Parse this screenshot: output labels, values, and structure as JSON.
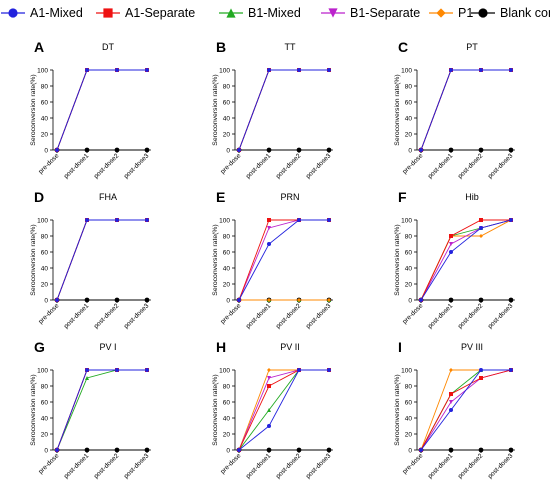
{
  "legend": [
    {
      "name": "A1-Mixed",
      "color": "#2222dd",
      "marker": "circle"
    },
    {
      "name": "A1-Separate",
      "color": "#ee1111",
      "marker": "square"
    },
    {
      "name": "B1-Mixed",
      "color": "#22aa22",
      "marker": "triangle-up"
    },
    {
      "name": "B1-Separate",
      "color": "#bb22cc",
      "marker": "triangle-down"
    },
    {
      "name": "P1",
      "color": "#ff8800",
      "marker": "diamond"
    },
    {
      "name": "Blank control",
      "color": "#000000",
      "marker": "circle"
    }
  ],
  "chart_data": [
    {
      "letter": "A",
      "title": "DT",
      "type": "line",
      "categories": [
        "pre-dose",
        "post-dose1",
        "post-dose2",
        "post-dose3"
      ],
      "ylabel": "Seroconversion rate(%)",
      "ylim": [
        0,
        100
      ],
      "yticks": [
        0,
        20,
        40,
        60,
        80,
        100
      ],
      "series": [
        {
          "name": "A1-Mixed",
          "values": [
            0,
            100,
            100,
            100
          ]
        },
        {
          "name": "A1-Separate",
          "values": [
            0,
            100,
            100,
            100
          ]
        },
        {
          "name": "B1-Mixed",
          "values": [
            0,
            100,
            100,
            100
          ]
        },
        {
          "name": "B1-Separate",
          "values": [
            0,
            100,
            100,
            100
          ]
        },
        {
          "name": "P1",
          "values": [
            0,
            100,
            100,
            100
          ]
        },
        {
          "name": "Blank control",
          "values": [
            0,
            0,
            0,
            0
          ]
        }
      ]
    },
    {
      "letter": "B",
      "title": "TT",
      "type": "line",
      "categories": [
        "pre-dose",
        "post-dose1",
        "post-dose2",
        "post-dose3"
      ],
      "ylabel": "Seroconversion rate(%)",
      "ylim": [
        0,
        100
      ],
      "yticks": [
        0,
        20,
        40,
        60,
        80,
        100
      ],
      "series": [
        {
          "name": "A1-Mixed",
          "values": [
            0,
            100,
            100,
            100
          ]
        },
        {
          "name": "A1-Separate",
          "values": [
            0,
            100,
            100,
            100
          ]
        },
        {
          "name": "B1-Mixed",
          "values": [
            0,
            100,
            100,
            100
          ]
        },
        {
          "name": "B1-Separate",
          "values": [
            0,
            100,
            100,
            100
          ]
        },
        {
          "name": "P1",
          "values": [
            0,
            100,
            100,
            100
          ]
        },
        {
          "name": "Blank control",
          "values": [
            0,
            0,
            0,
            0
          ]
        }
      ]
    },
    {
      "letter": "C",
      "title": "PT",
      "type": "line",
      "categories": [
        "pre-dose",
        "post-dose1",
        "post-dose2",
        "post-dose3"
      ],
      "ylabel": "Seroconversion rate(%)",
      "ylim": [
        0,
        100
      ],
      "yticks": [
        0,
        20,
        40,
        60,
        80,
        100
      ],
      "series": [
        {
          "name": "A1-Mixed",
          "values": [
            0,
            100,
            100,
            100
          ]
        },
        {
          "name": "A1-Separate",
          "values": [
            0,
            100,
            100,
            100
          ]
        },
        {
          "name": "B1-Mixed",
          "values": [
            0,
            100,
            100,
            100
          ]
        },
        {
          "name": "B1-Separate",
          "values": [
            0,
            100,
            100,
            100
          ]
        },
        {
          "name": "P1",
          "values": [
            0,
            100,
            100,
            100
          ]
        },
        {
          "name": "Blank control",
          "values": [
            0,
            0,
            0,
            0
          ]
        }
      ]
    },
    {
      "letter": "D",
      "title": "FHA",
      "type": "line",
      "categories": [
        "pre-dose",
        "post-dose1",
        "post-dose2",
        "post-dose3"
      ],
      "ylabel": "Seroconversion rate(%)",
      "ylim": [
        0,
        100
      ],
      "yticks": [
        0,
        20,
        40,
        60,
        80,
        100
      ],
      "series": [
        {
          "name": "A1-Mixed",
          "values": [
            0,
            100,
            100,
            100
          ]
        },
        {
          "name": "A1-Separate",
          "values": [
            0,
            100,
            100,
            100
          ]
        },
        {
          "name": "B1-Mixed",
          "values": [
            0,
            100,
            100,
            100
          ]
        },
        {
          "name": "B1-Separate",
          "values": [
            0,
            100,
            100,
            100
          ]
        },
        {
          "name": "P1",
          "values": [
            0,
            100,
            100,
            100
          ]
        },
        {
          "name": "Blank control",
          "values": [
            0,
            0,
            0,
            0
          ]
        }
      ]
    },
    {
      "letter": "E",
      "title": "PRN",
      "type": "line",
      "categories": [
        "pre-dose",
        "post-dose1",
        "post-dose2",
        "post-dose3"
      ],
      "ylabel": "Seroconversion rate(%)",
      "ylim": [
        0,
        100
      ],
      "yticks": [
        0,
        20,
        40,
        60,
        80,
        100
      ],
      "series": [
        {
          "name": "A1-Mixed",
          "values": [
            0,
            70,
            100,
            100
          ]
        },
        {
          "name": "A1-Separate",
          "values": [
            0,
            100,
            100,
            100
          ]
        },
        {
          "name": "B1-Mixed",
          "values": [
            0,
            0,
            0,
            0
          ]
        },
        {
          "name": "B1-Separate",
          "values": [
            0,
            90,
            100,
            100
          ]
        },
        {
          "name": "P1",
          "values": [
            0,
            0,
            0,
            0
          ]
        },
        {
          "name": "Blank control",
          "values": [
            0,
            0,
            0,
            0
          ]
        }
      ]
    },
    {
      "letter": "F",
      "title": "Hib",
      "type": "line",
      "categories": [
        "pre-dose",
        "post-dose1",
        "post-dose2",
        "post-dose3"
      ],
      "ylabel": "Seroconversion rate(%)",
      "ylim": [
        0,
        100
      ],
      "yticks": [
        0,
        20,
        40,
        60,
        80,
        100
      ],
      "series": [
        {
          "name": "A1-Mixed",
          "values": [
            0,
            60,
            90,
            100
          ]
        },
        {
          "name": "A1-Separate",
          "values": [
            0,
            80,
            100,
            100
          ]
        },
        {
          "name": "B1-Mixed",
          "values": [
            0,
            80,
            90,
            100
          ]
        },
        {
          "name": "B1-Separate",
          "values": [
            0,
            70,
            90,
            100
          ]
        },
        {
          "name": "P1",
          "values": [
            0,
            80,
            80,
            100
          ]
        },
        {
          "name": "Blank control",
          "values": [
            0,
            0,
            0,
            0
          ]
        }
      ]
    },
    {
      "letter": "G",
      "title": "PV  I",
      "type": "line",
      "categories": [
        "pre-dose",
        "post-dose1",
        "post-dose2",
        "post-dose3"
      ],
      "ylabel": "Seroconversion rate(%)",
      "ylim": [
        0,
        100
      ],
      "yticks": [
        0,
        20,
        40,
        60,
        80,
        100
      ],
      "series": [
        {
          "name": "A1-Mixed",
          "values": [
            0,
            100,
            100,
            100
          ]
        },
        {
          "name": "A1-Separate",
          "values": [
            0,
            100,
            100,
            100
          ]
        },
        {
          "name": "B1-Mixed",
          "values": [
            0,
            90,
            100,
            100
          ]
        },
        {
          "name": "B1-Separate",
          "values": [
            0,
            100,
            100,
            100
          ]
        },
        {
          "name": "P1",
          "values": [
            0,
            100,
            100,
            100
          ]
        },
        {
          "name": "Blank control",
          "values": [
            0,
            0,
            0,
            0
          ]
        }
      ]
    },
    {
      "letter": "H",
      "title": "PV II",
      "type": "line",
      "categories": [
        "pre-dose",
        "post-dose1",
        "post-dose2",
        "post-dose3"
      ],
      "ylabel": "Seroconversion rate(%)",
      "ylim": [
        0,
        100
      ],
      "yticks": [
        0,
        20,
        40,
        60,
        80,
        100
      ],
      "series": [
        {
          "name": "A1-Mixed",
          "values": [
            0,
            30,
            100,
            100
          ]
        },
        {
          "name": "A1-Separate",
          "values": [
            0,
            80,
            100,
            100
          ]
        },
        {
          "name": "B1-Mixed",
          "values": [
            0,
            50,
            100,
            100
          ]
        },
        {
          "name": "B1-Separate",
          "values": [
            0,
            90,
            100,
            100
          ]
        },
        {
          "name": "P1",
          "values": [
            0,
            100,
            100,
            100
          ]
        },
        {
          "name": "Blank control",
          "values": [
            0,
            0,
            0,
            0
          ]
        }
      ]
    },
    {
      "letter": "I",
      "title": "PV III",
      "type": "line",
      "categories": [
        "pre-dose",
        "post-dose1",
        "post-dose2",
        "post-dose3"
      ],
      "ylabel": "Seroconversion rate(%)",
      "ylim": [
        0,
        100
      ],
      "yticks": [
        0,
        20,
        40,
        60,
        80,
        100
      ],
      "series": [
        {
          "name": "A1-Mixed",
          "values": [
            0,
            50,
            100,
            100
          ]
        },
        {
          "name": "A1-Separate",
          "values": [
            0,
            70,
            90,
            100
          ]
        },
        {
          "name": "B1-Mixed",
          "values": [
            0,
            70,
            100,
            100
          ]
        },
        {
          "name": "B1-Separate",
          "values": [
            0,
            60,
            90,
            100
          ]
        },
        {
          "name": "P1",
          "values": [
            0,
            100,
            100,
            100
          ]
        },
        {
          "name": "Blank control",
          "values": [
            0,
            0,
            0,
            0
          ]
        }
      ]
    }
  ]
}
